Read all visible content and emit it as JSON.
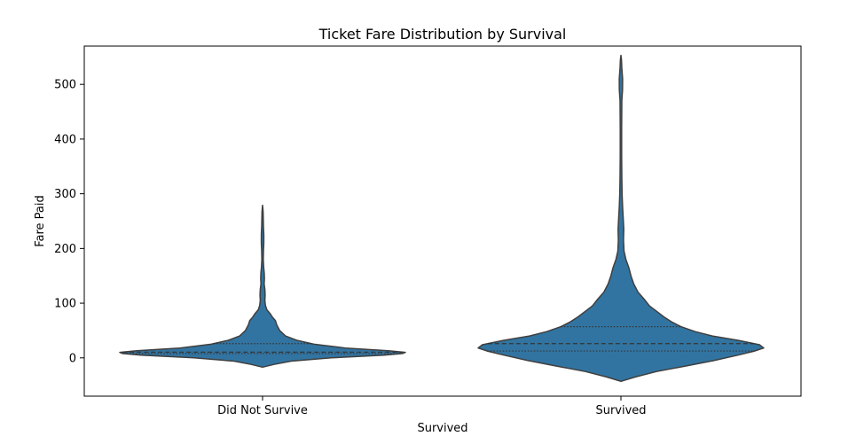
{
  "chart_data": {
    "type": "violin",
    "title": "Ticket Fare Distribution by Survival",
    "xlabel": "Survived",
    "ylabel": "Fare Paid",
    "categories": [
      "Did Not Survive",
      "Survived"
    ],
    "ylim": [
      -70,
      570
    ],
    "yticks": [
      0,
      100,
      200,
      300,
      400,
      500
    ],
    "grid": false,
    "color": "#3274a1",
    "edge_color": "#3f3f3f",
    "violins": [
      {
        "category": "Did Not Survive",
        "quartiles": {
          "q1": 7.9,
          "median": 10.5,
          "q3": 26.0
        },
        "density": [
          [
            -17,
            0.0
          ],
          [
            -12,
            0.08
          ],
          [
            -6,
            0.2
          ],
          [
            0,
            0.48
          ],
          [
            5,
            0.85
          ],
          [
            8,
            0.98
          ],
          [
            10,
            1.0
          ],
          [
            13,
            0.88
          ],
          [
            18,
            0.58
          ],
          [
            25,
            0.36
          ],
          [
            32,
            0.24
          ],
          [
            40,
            0.16
          ],
          [
            50,
            0.12
          ],
          [
            60,
            0.1
          ],
          [
            68,
            0.09
          ],
          [
            74,
            0.07
          ],
          [
            80,
            0.055
          ],
          [
            88,
            0.03
          ],
          [
            96,
            0.02
          ],
          [
            105,
            0.016
          ],
          [
            115,
            0.018
          ],
          [
            125,
            0.016
          ],
          [
            135,
            0.011
          ],
          [
            145,
            0.013
          ],
          [
            155,
            0.012
          ],
          [
            165,
            0.008
          ],
          [
            180,
            0.005
          ],
          [
            195,
            0.006
          ],
          [
            210,
            0.009
          ],
          [
            225,
            0.009
          ],
          [
            240,
            0.006
          ],
          [
            255,
            0.005
          ],
          [
            268,
            0.004
          ],
          [
            279,
            0.0
          ]
        ]
      },
      {
        "category": "Survived",
        "quartiles": {
          "q1": 12.5,
          "median": 26.0,
          "q3": 57.0
        },
        "density": [
          [
            -43,
            0.0
          ],
          [
            -35,
            0.1
          ],
          [
            -25,
            0.25
          ],
          [
            -15,
            0.45
          ],
          [
            -5,
            0.65
          ],
          [
            5,
            0.82
          ],
          [
            12,
            0.93
          ],
          [
            18,
            1.0
          ],
          [
            24,
            0.97
          ],
          [
            32,
            0.82
          ],
          [
            40,
            0.64
          ],
          [
            48,
            0.52
          ],
          [
            57,
            0.42
          ],
          [
            65,
            0.36
          ],
          [
            75,
            0.3
          ],
          [
            85,
            0.25
          ],
          [
            95,
            0.2
          ],
          [
            108,
            0.16
          ],
          [
            120,
            0.12
          ],
          [
            135,
            0.09
          ],
          [
            150,
            0.07
          ],
          [
            165,
            0.055
          ],
          [
            180,
            0.035
          ],
          [
            195,
            0.022
          ],
          [
            215,
            0.018
          ],
          [
            235,
            0.02
          ],
          [
            255,
            0.016
          ],
          [
            275,
            0.012
          ],
          [
            300,
            0.008
          ],
          [
            330,
            0.006
          ],
          [
            370,
            0.005
          ],
          [
            420,
            0.005
          ],
          [
            470,
            0.006
          ],
          [
            490,
            0.011
          ],
          [
            510,
            0.012
          ],
          [
            530,
            0.006
          ],
          [
            545,
            0.004
          ],
          [
            553,
            0.0
          ]
        ]
      }
    ]
  }
}
